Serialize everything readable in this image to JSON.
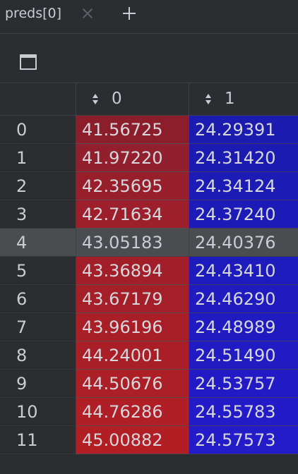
{
  "tab": {
    "title": "preds[0]"
  },
  "table": {
    "columns": [
      "0",
      "1"
    ],
    "rows": [
      {
        "index": "0",
        "c0": "41.56725",
        "c1": "24.29391",
        "bg0": "#8c1e2c",
        "bg1": "#1b1bb0"
      },
      {
        "index": "1",
        "c0": "41.97220",
        "c1": "24.31420",
        "bg0": "#911f2d",
        "bg1": "#1b1bb2"
      },
      {
        "index": "2",
        "c0": "42.35695",
        "c1": "24.34124",
        "bg0": "#971f2c",
        "bg1": "#1c1bb5"
      },
      {
        "index": "3",
        "c0": "42.71634",
        "c1": "24.37240",
        "bg0": "#9c1f2b",
        "bg1": "#1d1bb8"
      },
      {
        "index": "4",
        "c0": "43.05183",
        "c1": "24.40376",
        "bg0": "#4a4c50",
        "bg1": "#4a4c50",
        "selected": true
      },
      {
        "index": "5",
        "c0": "43.36894",
        "c1": "24.43410",
        "bg0": "#a21f2a",
        "bg1": "#1e1bbc"
      },
      {
        "index": "6",
        "c0": "43.67179",
        "c1": "24.46290",
        "bg0": "#a51f29",
        "bg1": "#1f1bbf"
      },
      {
        "index": "7",
        "c0": "43.96196",
        "c1": "24.48989",
        "bg0": "#a81f28",
        "bg1": "#201bc1"
      },
      {
        "index": "8",
        "c0": "44.24001",
        "c1": "24.51490",
        "bg0": "#aa1f27",
        "bg1": "#211bc3"
      },
      {
        "index": "9",
        "c0": "44.50676",
        "c1": "24.53757",
        "bg0": "#ad1f26",
        "bg1": "#221bc5"
      },
      {
        "index": "10",
        "c0": "44.76286",
        "c1": "24.55783",
        "bg0": "#af1f25",
        "bg1": "#231bc7"
      },
      {
        "index": "11",
        "c0": "45.00882",
        "c1": "24.57573",
        "bg0": "#b11f24",
        "bg1": "#241bc9"
      }
    ]
  },
  "colors": {
    "background": "#2b2d30",
    "grid_line": "#3f4245",
    "text": "#c9ccd1"
  }
}
